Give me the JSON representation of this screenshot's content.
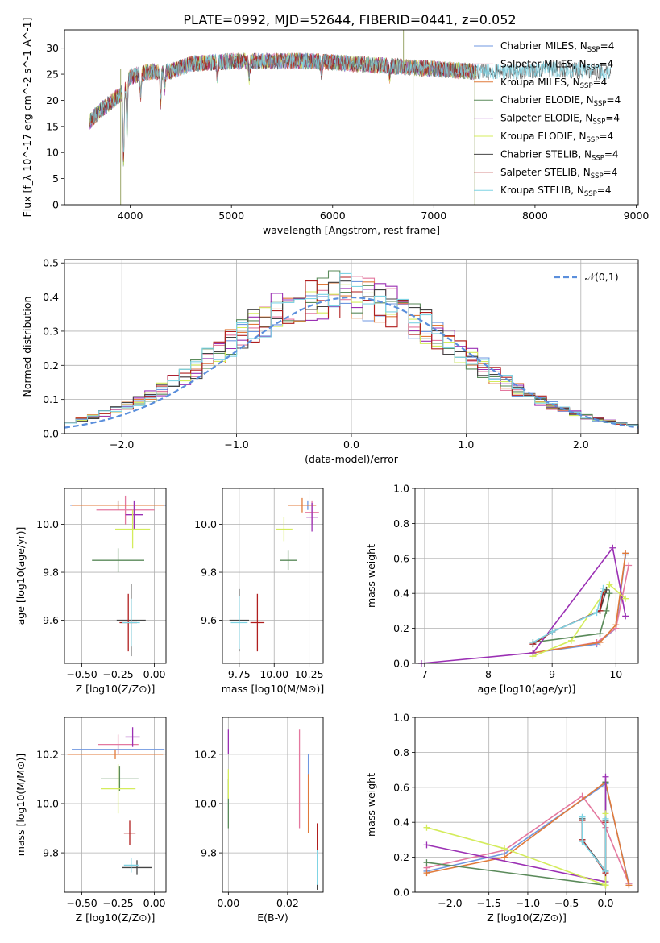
{
  "title": "PLATE=0992, MJD=52644, FIBERID=0441, z=0.052",
  "models": [
    {
      "label": "Chabrier MILES, N_SSP=4",
      "imf": "Chabrier",
      "lib": "MILES",
      "color": "#6f97e0"
    },
    {
      "label": "Salpeter MILES, N_SSP=4",
      "imf": "Salpeter",
      "lib": "MILES",
      "color": "#e4789f"
    },
    {
      "label": "Kroupa MILES, N_SSP=4",
      "imf": "Kroupa",
      "lib": "MILES",
      "color": "#e07a3a"
    },
    {
      "label": "Chabrier ELODIE, N_SSP=4",
      "imf": "Chabrier",
      "lib": "ELODIE",
      "color": "#5a8a5a"
    },
    {
      "label": "Salpeter ELODIE, N_SSP=4",
      "imf": "Salpeter",
      "lib": "ELODIE",
      "color": "#9b30b4"
    },
    {
      "label": "Kroupa ELODIE, N_SSP=4",
      "imf": "Kroupa",
      "lib": "ELODIE",
      "color": "#d4ec5c"
    },
    {
      "label": "Chabrier STELIB, N_SSP=4",
      "imf": "Chabrier",
      "lib": "STELIB",
      "color": "#444444"
    },
    {
      "label": "Salpeter STELIB, N_SSP=4",
      "imf": "Salpeter",
      "lib": "STELIB",
      "color": "#b01e1e"
    },
    {
      "label": "Kroupa STELIB, N_SSP=4",
      "imf": "Kroupa",
      "lib": "STELIB",
      "color": "#7fd4e4"
    }
  ],
  "chart_data": [
    {
      "id": "spectrum",
      "type": "line",
      "xlabel": "wavelength [Angstrom, rest frame]",
      "ylabel": "Flux [f_λ 10^-17 erg cm^-2 s^-1 A^-1]",
      "xlim": [
        3350,
        9020
      ],
      "ylim": [
        0,
        33.5
      ],
      "xticks": [
        4000,
        5000,
        6000,
        7000,
        8000,
        9000
      ],
      "yticks": [
        0,
        5,
        10,
        15,
        20,
        25,
        30
      ],
      "grid": false,
      "legend": "right",
      "x_range": [
        3600,
        8750
      ],
      "continuum": [
        [
          3600,
          16
        ],
        [
          3700,
          18
        ],
        [
          3800,
          19.5
        ],
        [
          3900,
          21
        ],
        [
          4000,
          24.5
        ],
        [
          4200,
          25.5
        ],
        [
          4400,
          25.5
        ],
        [
          4600,
          27
        ],
        [
          5000,
          27.5
        ],
        [
          5400,
          27.5
        ],
        [
          5800,
          27.5
        ],
        [
          6200,
          27
        ],
        [
          6600,
          26.5
        ],
        [
          7000,
          26
        ],
        [
          7400,
          25.5
        ],
        [
          7800,
          25.5
        ],
        [
          8200,
          26
        ],
        [
          8600,
          25.5
        ],
        [
          8750,
          25.5
        ]
      ],
      "absorption": [
        [
          3934,
          14
        ],
        [
          3968,
          10
        ],
        [
          4102,
          4
        ],
        [
          4300,
          6
        ],
        [
          4340,
          3
        ],
        [
          4861,
          3
        ],
        [
          5175,
          3
        ],
        [
          5890,
          2
        ],
        [
          6563,
          2
        ]
      ],
      "spikes": [
        [
          3905,
          0
        ],
        [
          6795,
          0
        ],
        [
          7405,
          0
        ],
        [
          6700,
          33.5
        ]
      ]
    },
    {
      "id": "residuals",
      "type": "histogram",
      "xlabel": "(data-model)/error",
      "ylabel": "Normed distribution",
      "xlim": [
        -2.5,
        2.5
      ],
      "ylim": [
        0,
        0.51
      ],
      "xticks": [
        -2,
        -1,
        0,
        1,
        2
      ],
      "yticks": [
        0,
        0.1,
        0.2,
        0.3,
        0.4,
        0.5
      ],
      "grid": true,
      "legend": "top-right",
      "reference": {
        "name": "𝒩(0,1)",
        "mean": 0,
        "sigma": 1
      },
      "bin_width": 0.1,
      "bin_start": -2.5
    },
    {
      "id": "age_vs_Z",
      "type": "errorbar",
      "xlabel": "Z [log10(Z/Z⊙)]",
      "ylabel": "age [log10(age/yr)]",
      "xlim": [
        -0.62,
        0.08
      ],
      "ylim": [
        9.42,
        10.15
      ],
      "xticks": [
        -0.5,
        -0.25,
        0.0
      ],
      "yticks": [
        9.6,
        9.8,
        10.0
      ],
      "grid": true,
      "points": [
        {
          "x": -0.25,
          "y": 10.08,
          "xerr": 0.33,
          "yerr": 0.02
        },
        {
          "x": -0.2,
          "y": 10.06,
          "xerr": 0.2,
          "yerr": 0.06
        },
        {
          "x": -0.25,
          "y": 10.08,
          "xerr": 0.32,
          "yerr": 0.02
        },
        {
          "x": -0.25,
          "y": 9.85,
          "xerr": 0.18,
          "yerr": 0.05
        },
        {
          "x": -0.14,
          "y": 10.04,
          "xerr": 0.06,
          "yerr": 0.06
        },
        {
          "x": -0.15,
          "y": 9.98,
          "xerr": 0.12,
          "yerr": 0.08
        },
        {
          "x": -0.16,
          "y": 9.6,
          "xerr": 0.1,
          "yerr": 0.15
        },
        {
          "x": -0.18,
          "y": 9.59,
          "xerr": 0.06,
          "yerr": 0.12
        },
        {
          "x": -0.16,
          "y": 9.59,
          "xerr": 0.06,
          "yerr": 0.1
        }
      ]
    },
    {
      "id": "age_vs_mass",
      "type": "errorbar",
      "xlabel": "mass [log10(M/M⊙)]",
      "ylabel": "",
      "xlim": [
        9.63,
        10.35
      ],
      "ylim": [
        9.42,
        10.15
      ],
      "xticks": [
        9.75,
        10.0,
        10.25
      ],
      "yticks": [
        9.6,
        9.8,
        10.0
      ],
      "grid": true,
      "points": [
        {
          "x": 10.24,
          "y": 10.08,
          "xerr": 0.04,
          "yerr": 0.02
        },
        {
          "x": 10.27,
          "y": 10.05,
          "xerr": 0.05,
          "yerr": 0.05
        },
        {
          "x": 10.2,
          "y": 10.08,
          "xerr": 0.1,
          "yerr": 0.03
        },
        {
          "x": 10.1,
          "y": 9.85,
          "xerr": 0.06,
          "yerr": 0.04
        },
        {
          "x": 10.27,
          "y": 10.03,
          "xerr": 0.04,
          "yerr": 0.06
        },
        {
          "x": 10.07,
          "y": 9.98,
          "xerr": 0.06,
          "yerr": 0.05
        },
        {
          "x": 9.75,
          "y": 9.6,
          "xerr": 0.07,
          "yerr": 0.13
        },
        {
          "x": 9.88,
          "y": 9.59,
          "xerr": 0.05,
          "yerr": 0.12
        },
        {
          "x": 9.75,
          "y": 9.59,
          "xerr": 0.06,
          "yerr": 0.11
        }
      ]
    },
    {
      "id": "massweight_vs_age",
      "type": "line",
      "xlabel": "age [log10(age/yr)]",
      "ylabel": "mass weight",
      "xlim": [
        6.85,
        10.35
      ],
      "ylim": [
        0,
        1.0
      ],
      "xticks": [
        7,
        8,
        9,
        10
      ],
      "yticks": [
        0,
        0.2,
        0.4,
        0.6,
        0.8,
        1.0
      ],
      "grid": true,
      "series": [
        {
          "x": [
            8.7,
            9.7,
            10.0,
            10.15
          ],
          "y": [
            0.06,
            0.11,
            0.2,
            0.62
          ]
        },
        {
          "x": [
            8.7,
            9.7,
            10.0,
            10.2
          ],
          "y": [
            0.06,
            0.12,
            0.2,
            0.56
          ]
        },
        {
          "x": [
            8.7,
            9.75,
            10.0,
            10.15
          ],
          "y": [
            0.06,
            0.12,
            0.22,
            0.63
          ]
        },
        {
          "x": [
            8.7,
            9.75,
            9.85,
            9.9
          ],
          "y": [
            0.12,
            0.17,
            0.3,
            0.4
          ]
        },
        {
          "x": [
            6.95,
            8.7,
            9.95,
            10.15
          ],
          "y": [
            0.0,
            0.06,
            0.66,
            0.27
          ]
        },
        {
          "x": [
            8.7,
            9.3,
            9.9,
            10.15
          ],
          "y": [
            0.04,
            0.13,
            0.45,
            0.37
          ]
        },
        {
          "x": [
            8.7,
            9.0,
            9.75,
            9.85
          ],
          "y": [
            0.11,
            0.18,
            0.3,
            0.42
          ]
        },
        {
          "x": [
            8.7,
            9.0,
            9.75,
            9.8
          ],
          "y": [
            0.11,
            0.18,
            0.3,
            0.41
          ]
        },
        {
          "x": [
            8.7,
            9.0,
            9.7,
            9.8
          ],
          "y": [
            0.12,
            0.18,
            0.29,
            0.43
          ]
        }
      ]
    },
    {
      "id": "mass_vs_Z",
      "type": "errorbar",
      "xlabel": "Z [log10(Z/Z⊙)]",
      "ylabel": "mass [log10(M/M⊙)]",
      "xlim": [
        -0.62,
        0.08
      ],
      "ylim": [
        9.64,
        10.35
      ],
      "xticks": [
        -0.5,
        -0.25,
        0.0
      ],
      "yticks": [
        9.8,
        10.0,
        10.2
      ],
      "grid": true,
      "points": [
        {
          "x": -0.25,
          "y": 10.22,
          "xerr": 0.32,
          "yerr": 0.02
        },
        {
          "x": -0.25,
          "y": 10.24,
          "xerr": 0.14,
          "yerr": 0.04
        },
        {
          "x": -0.27,
          "y": 10.2,
          "xerr": 0.33,
          "yerr": 0.02
        },
        {
          "x": -0.24,
          "y": 10.1,
          "xerr": 0.13,
          "yerr": 0.05
        },
        {
          "x": -0.15,
          "y": 10.27,
          "xerr": 0.05,
          "yerr": 0.04
        },
        {
          "x": -0.25,
          "y": 10.06,
          "xerr": 0.12,
          "yerr": 0.1
        },
        {
          "x": -0.12,
          "y": 9.74,
          "xerr": 0.1,
          "yerr": 0.03
        },
        {
          "x": -0.17,
          "y": 9.88,
          "xerr": 0.04,
          "yerr": 0.05
        },
        {
          "x": -0.16,
          "y": 9.75,
          "xerr": 0.05,
          "yerr": 0.03
        }
      ]
    },
    {
      "id": "mass_vs_EBV",
      "type": "errorbar",
      "xlabel": "E(B-V)",
      "ylabel": "",
      "xlim": [
        -0.002,
        0.032
      ],
      "ylim": [
        9.64,
        10.35
      ],
      "xticks": [
        0.0,
        0.02
      ],
      "yticks": [
        9.8,
        10.0,
        10.2
      ],
      "grid": true,
      "points": [
        {
          "x": 0.027,
          "y": 10.1,
          "xerr": 0,
          "yerr": 0.1
        },
        {
          "x": 0.024,
          "y": 10.1,
          "xerr": 0,
          "yerr": 0.2
        },
        {
          "x": 0.027,
          "y": 10.0,
          "xerr": 0,
          "yerr": 0.12
        },
        {
          "x": 0.0,
          "y": 10.0,
          "xerr": 0,
          "yerr": 0.1
        },
        {
          "x": 0.0,
          "y": 10.25,
          "xerr": 0,
          "yerr": 0.05
        },
        {
          "x": 0.0,
          "y": 10.08,
          "xerr": 0,
          "yerr": 0.06
        },
        {
          "x": 0.03,
          "y": 9.75,
          "xerr": 0,
          "yerr": 0.1
        },
        {
          "x": 0.03,
          "y": 9.85,
          "xerr": 0,
          "yerr": 0.07
        },
        {
          "x": 0.03,
          "y": 9.74,
          "xerr": 0,
          "yerr": 0.07
        }
      ]
    },
    {
      "id": "massweight_vs_Z",
      "type": "line",
      "xlabel": "Z [log10(Z/Z⊙)]",
      "ylabel": "mass weight",
      "xlim": [
        -2.45,
        0.42
      ],
      "ylim": [
        0,
        1.0
      ],
      "xticks": [
        -2.0,
        -1.5,
        -1.0,
        -0.5,
        0.0
      ],
      "yticks": [
        0,
        0.2,
        0.4,
        0.6,
        0.8,
        1.0
      ],
      "grid": true,
      "series": [
        {
          "x": [
            -2.3,
            -1.3,
            0.0,
            0.3
          ],
          "y": [
            0.12,
            0.22,
            0.62,
            0.05
          ]
        },
        {
          "x": [
            -2.3,
            -1.3,
            -0.3,
            0.0,
            0.3
          ],
          "y": [
            0.14,
            0.24,
            0.55,
            0.37,
            0.05
          ]
        },
        {
          "x": [
            -2.3,
            -1.3,
            0.0,
            0.3
          ],
          "y": [
            0.11,
            0.2,
            0.63,
            0.04
          ]
        },
        {
          "x": [
            -2.3,
            0.0,
            0.0
          ],
          "y": [
            0.17,
            0.04,
            0.63
          ]
        },
        {
          "x": [
            -2.3,
            0.0,
            0.0
          ],
          "y": [
            0.27,
            0.06,
            0.66
          ]
        },
        {
          "x": [
            -2.3,
            -1.3,
            0.0,
            0.0
          ],
          "y": [
            0.37,
            0.25,
            0.04,
            0.45
          ]
        },
        {
          "x": [
            -0.3,
            -0.3,
            0.0,
            0.0
          ],
          "y": [
            0.42,
            0.3,
            0.12,
            0.41
          ]
        },
        {
          "x": [
            -0.3,
            -0.3,
            0.0,
            0.0
          ],
          "y": [
            0.41,
            0.3,
            0.11,
            0.4
          ]
        },
        {
          "x": [
            -0.3,
            -0.3,
            0.0,
            0.0
          ],
          "y": [
            0.43,
            0.29,
            0.12,
            0.42
          ]
        }
      ]
    }
  ]
}
